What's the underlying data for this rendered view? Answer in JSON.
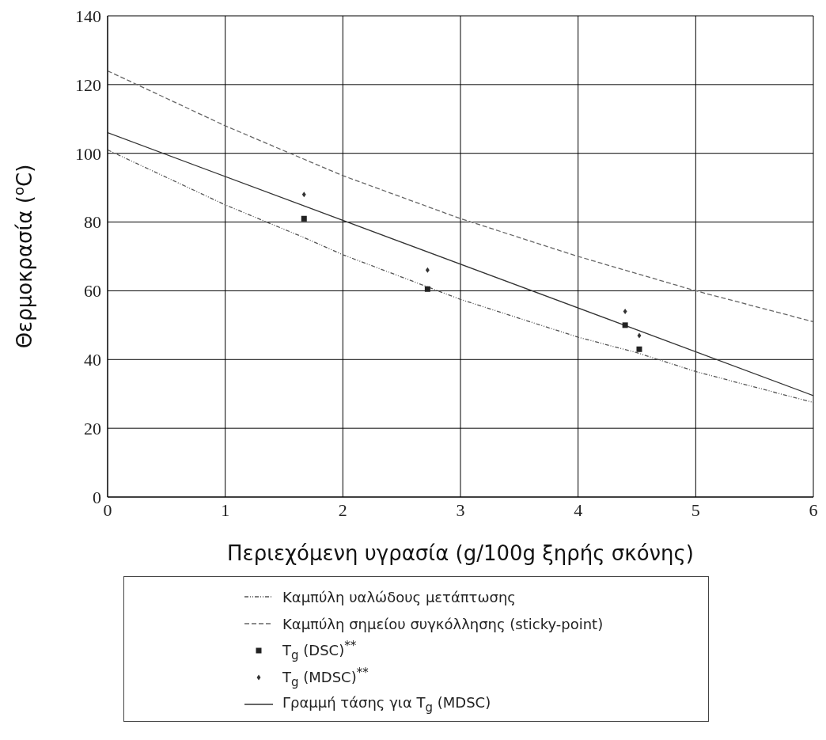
{
  "chart_data": {
    "type": "line",
    "xlabel": "Περιεχόμενη υγρασία (g/100g ξηρής σκόνης)",
    "ylabel": "Θερμοκρασία ($^{o}$C)",
    "xlim": [
      0,
      6
    ],
    "xticks": [
      0,
      1,
      2,
      3,
      4,
      5,
      6
    ],
    "ylim": [
      0,
      140
    ],
    "yticks": [
      0,
      20,
      40,
      60,
      80,
      100,
      120,
      140
    ],
    "grid": true,
    "legend": "bottom",
    "series": [
      {
        "name": "Καμπύλη υαλώδους μετάπτωσης",
        "type": "line",
        "line_style": "dotted",
        "marker": "none",
        "color": "#555555",
        "x": [
          0,
          1,
          1.67,
          2,
          3,
          4,
          4.5,
          5,
          6
        ],
        "values": [
          101,
          85,
          75.5,
          70.5,
          57.5,
          46.5,
          42,
          36.5,
          27.5
        ]
      },
      {
        "name": "Καμπύλη σημείου συγκόλλησης (sticky-point)",
        "type": "line",
        "line_style": "dashed",
        "marker": "none",
        "color": "#666666",
        "x": [
          0,
          1,
          2,
          3,
          4,
          5,
          6
        ],
        "values": [
          124,
          108,
          93.5,
          81,
          70,
          60,
          51
        ]
      },
      {
        "name": "T$_{g}$ (DSC)$^{**}$",
        "type": "scatter",
        "marker": "square",
        "color": "#222222",
        "x": [
          1.67,
          2.72,
          4.4,
          4.52
        ],
        "values": [
          81,
          60.5,
          50,
          43
        ]
      },
      {
        "name": "T$_{g}$ (MDSC)$^{**}$",
        "type": "scatter",
        "marker": "diamond",
        "color": "#333333",
        "x": [
          1.67,
          2.72,
          4.4,
          4.52
        ],
        "values": [
          88,
          66,
          54,
          47
        ]
      },
      {
        "name": "Γραμμή τάσης για T$_{g}$ (MDSC)",
        "type": "line",
        "line_style": "solid",
        "marker": "none",
        "color": "#333333",
        "x": [
          0,
          6
        ],
        "values": [
          106,
          29.5
        ]
      }
    ]
  }
}
